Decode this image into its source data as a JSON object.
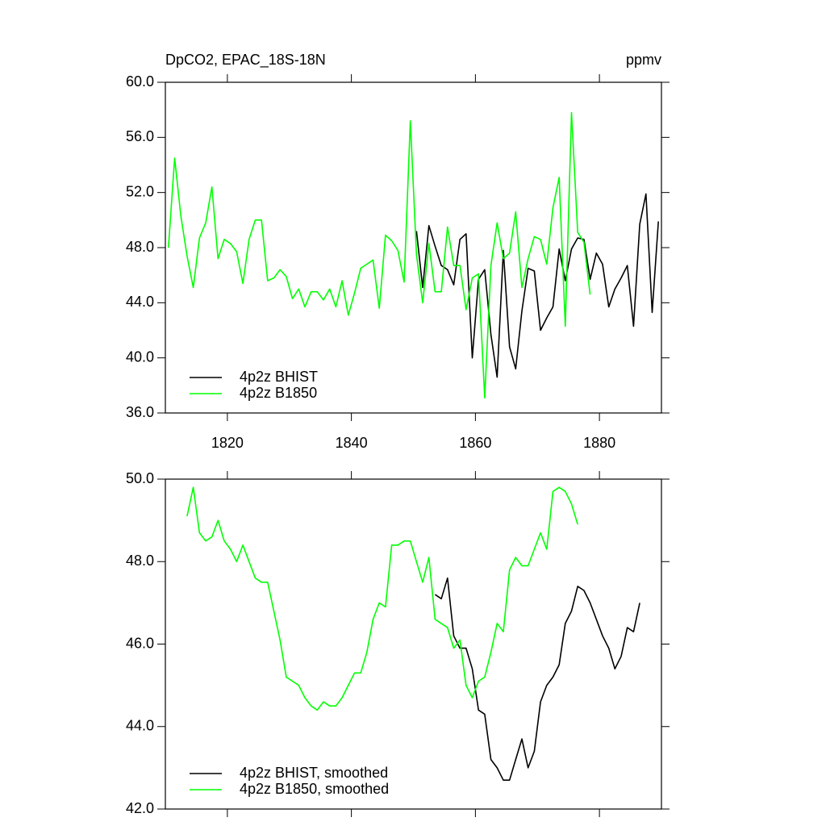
{
  "chart_data": [
    {
      "type": "line",
      "title": "DpCO2, EPAC_18S-18N",
      "units": "ppmv",
      "xlim": [
        1810,
        1890
      ],
      "xticks": [
        1820,
        1840,
        1860,
        1880
      ],
      "ylim": [
        36,
        60
      ],
      "yticks": [
        {
          "value": 36,
          "label": "36.0"
        },
        {
          "value": 40,
          "label": "40.0"
        },
        {
          "value": 44,
          "label": "44.0"
        },
        {
          "value": 48,
          "label": "48.0"
        },
        {
          "value": 52,
          "label": "52.0"
        },
        {
          "value": 56,
          "label": "56.0"
        },
        {
          "value": 60,
          "label": "60.0"
        }
      ],
      "legend": "lower left",
      "series": [
        {
          "name": "4p2z BHIST",
          "color": "#000000",
          "x": [
            1850.5,
            1851.5,
            1852.5,
            1853.5,
            1854.5,
            1855.5,
            1856.5,
            1857.5,
            1858.5,
            1859.5,
            1860.5,
            1861.5,
            1862.5,
            1863.5,
            1864.5,
            1865.5,
            1866.5,
            1867.5,
            1868.5,
            1869.5,
            1870.5,
            1871.5,
            1872.5,
            1873.5,
            1874.5,
            1875.5,
            1876.5,
            1877.5,
            1878.5,
            1879.5,
            1880.5,
            1881.5,
            1882.5,
            1883.5,
            1884.5,
            1885.5,
            1886.5,
            1887.5,
            1888.5,
            1889.5
          ],
          "values": [
            49.2,
            45.1,
            49.6,
            48.1,
            46.7,
            46.4,
            45.3,
            48.6,
            49.0,
            40.0,
            45.7,
            46.4,
            41.7,
            38.6,
            47.8,
            40.8,
            39.2,
            43.4,
            46.5,
            46.3,
            42.0,
            42.9,
            43.7,
            47.9,
            45.6,
            47.9,
            48.7,
            48.6,
            45.7,
            47.6,
            46.8,
            43.7,
            45.0,
            45.8,
            46.7,
            42.3,
            49.7,
            51.9,
            43.3,
            49.9
          ]
        },
        {
          "name": "4p2z B1850",
          "color": "#00ff00",
          "x": [
            1810.5,
            1811.5,
            1812.5,
            1813.5,
            1814.5,
            1815.5,
            1816.5,
            1817.5,
            1818.5,
            1819.5,
            1820.5,
            1821.5,
            1822.5,
            1823.5,
            1824.5,
            1825.5,
            1826.5,
            1827.5,
            1828.5,
            1829.5,
            1830.5,
            1831.5,
            1832.5,
            1833.5,
            1834.5,
            1835.5,
            1836.5,
            1837.5,
            1838.5,
            1839.5,
            1840.5,
            1841.5,
            1842.5,
            1843.5,
            1844.5,
            1845.5,
            1846.5,
            1847.5,
            1848.5,
            1849.5,
            1850.5,
            1851.5,
            1852.5,
            1853.5,
            1854.5,
            1855.5,
            1856.5,
            1857.5,
            1858.5,
            1859.5,
            1860.5,
            1861.5,
            1862.5,
            1863.5,
            1864.5,
            1865.5,
            1866.5,
            1867.5,
            1868.5,
            1869.5,
            1870.5,
            1871.5,
            1872.5,
            1873.5,
            1874.5,
            1875.5,
            1876.5,
            1877.5,
            1878.5
          ],
          "values": [
            48.0,
            54.5,
            50.3,
            47.4,
            45.1,
            48.7,
            49.8,
            52.4,
            47.2,
            48.6,
            48.3,
            47.7,
            45.4,
            48.6,
            50.0,
            50.0,
            45.6,
            45.8,
            46.4,
            45.9,
            44.3,
            45.0,
            43.7,
            44.8,
            44.8,
            44.2,
            45.0,
            43.7,
            45.6,
            43.1,
            44.7,
            46.5,
            46.8,
            47.1,
            43.6,
            48.9,
            48.5,
            47.8,
            45.5,
            57.2,
            47.5,
            44.0,
            48.3,
            44.8,
            44.8,
            49.5,
            46.7,
            46.7,
            43.5,
            45.8,
            46.1,
            37.1,
            46.7,
            49.8,
            47.2,
            47.6,
            50.6,
            45.1,
            47.2,
            48.8,
            48.6,
            46.8,
            50.9,
            53.1,
            42.3,
            57.8,
            49.1,
            48.4,
            44.6
          ]
        }
      ]
    },
    {
      "type": "line",
      "xlim": [
        1810,
        1890
      ],
      "xticks": [
        1820,
        1840,
        1860,
        1880
      ],
      "xtick_labels": false,
      "ylim": [
        42,
        50
      ],
      "yticks": [
        {
          "value": 42,
          "label": "42.0"
        },
        {
          "value": 44,
          "label": "44.0"
        },
        {
          "value": 46,
          "label": "46.0"
        },
        {
          "value": 48,
          "label": "48.0"
        },
        {
          "value": 50,
          "label": "50.0"
        }
      ],
      "legend": "lower left",
      "series": [
        {
          "name": "4p2z BHIST, smoothed",
          "color": "#000000",
          "x": [
            1853.5,
            1854.5,
            1855.5,
            1856.5,
            1857.5,
            1858.5,
            1859.5,
            1860.5,
            1861.5,
            1862.5,
            1863.5,
            1864.5,
            1865.5,
            1866.5,
            1867.5,
            1868.5,
            1869.5,
            1870.5,
            1871.5,
            1872.5,
            1873.5,
            1874.5,
            1875.5,
            1876.5,
            1877.5,
            1878.5,
            1879.5,
            1880.5,
            1881.5,
            1882.5,
            1883.5,
            1884.5,
            1885.5,
            1886.5
          ],
          "values": [
            47.2,
            47.1,
            47.6,
            46.2,
            45.9,
            45.9,
            45.4,
            44.4,
            44.3,
            43.2,
            43.0,
            42.7,
            42.7,
            43.2,
            43.7,
            43.0,
            43.4,
            44.6,
            45.0,
            45.2,
            45.5,
            46.5,
            46.8,
            47.4,
            47.3,
            47.0,
            46.6,
            46.2,
            45.9,
            45.4,
            45.7,
            46.4,
            46.3,
            47.0
          ]
        },
        {
          "name": "4p2z B1850, smoothed",
          "color": "#00ff00",
          "x": [
            1813.5,
            1814.5,
            1815.5,
            1816.5,
            1817.5,
            1818.5,
            1819.5,
            1820.5,
            1821.5,
            1822.5,
            1823.5,
            1824.5,
            1825.5,
            1826.5,
            1827.5,
            1828.5,
            1829.5,
            1830.5,
            1831.5,
            1832.5,
            1833.5,
            1834.5,
            1835.5,
            1836.5,
            1837.5,
            1838.5,
            1839.5,
            1840.5,
            1841.5,
            1842.5,
            1843.5,
            1844.5,
            1845.5,
            1846.5,
            1847.5,
            1848.5,
            1849.5,
            1850.5,
            1851.5,
            1852.5,
            1853.5,
            1854.5,
            1855.5,
            1856.5,
            1857.5,
            1858.5,
            1859.5,
            1860.5,
            1861.5,
            1862.5,
            1863.5,
            1864.5,
            1865.5,
            1866.5,
            1867.5,
            1868.5,
            1869.5,
            1870.5,
            1871.5,
            1872.5,
            1873.5,
            1874.5,
            1875.5,
            1876.5
          ],
          "values": [
            49.1,
            49.8,
            48.7,
            48.5,
            48.6,
            49.0,
            48.5,
            48.3,
            48.0,
            48.4,
            48.0,
            47.6,
            47.5,
            47.5,
            46.8,
            46.1,
            45.2,
            45.1,
            45.0,
            44.7,
            44.5,
            44.4,
            44.6,
            44.5,
            44.5,
            44.7,
            45.0,
            45.3,
            45.3,
            45.8,
            46.6,
            47.0,
            46.9,
            48.4,
            48.4,
            48.5,
            48.5,
            48.0,
            47.5,
            48.1,
            46.6,
            46.5,
            46.4,
            45.9,
            46.1,
            45.0,
            44.7,
            45.1,
            45.2,
            45.8,
            46.5,
            46.3,
            47.8,
            48.1,
            47.9,
            47.9,
            48.3,
            48.7,
            48.3,
            49.7,
            49.8,
            49.7,
            49.4,
            48.9
          ]
        }
      ]
    }
  ]
}
